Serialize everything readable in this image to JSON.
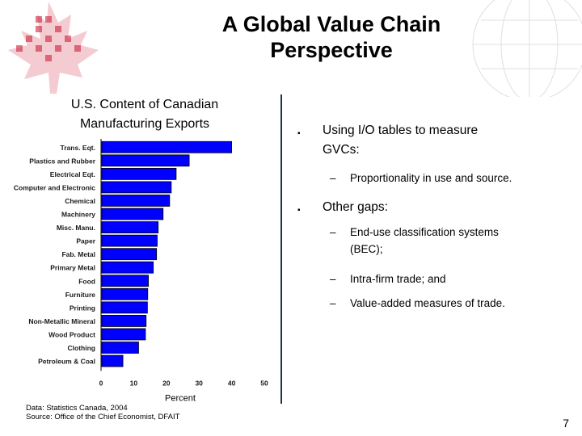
{
  "slide": {
    "title_lines": [
      "A Global Value Chain",
      "Perspective"
    ],
    "page_number": "7",
    "sources": [
      "Data: Statistics Canada, 2004",
      "Source: Office of the Chief Economist, DFAIT"
    ]
  },
  "bullets": [
    {
      "level": 1,
      "marker": "▪",
      "lines": [
        "Using I/O tables to measure",
        "GVCs:"
      ]
    },
    {
      "level": 2,
      "marker": "–",
      "lines": [
        "Proportionality in use and source."
      ]
    },
    {
      "level": 1,
      "marker": "▪",
      "lines": [
        "Other gaps:"
      ]
    },
    {
      "level": 2,
      "marker": "–",
      "lines": [
        "End-use classification systems",
        "(BEC);"
      ]
    },
    {
      "level": 2,
      "marker": "–",
      "lines": [
        "Intra-firm trade; and"
      ]
    },
    {
      "level": 2,
      "marker": "–",
      "lines": [
        "Value-added measures of trade."
      ]
    }
  ],
  "chart_data": {
    "type": "bar",
    "orientation": "horizontal",
    "title_lines": [
      "U.S. Content of Canadian",
      "Manufacturing Exports"
    ],
    "xlabel": "Percent",
    "ylabel": "",
    "xlim": [
      0,
      50
    ],
    "xticks": [
      0,
      10,
      20,
      30,
      40,
      50
    ],
    "grid": false,
    "bar_color": "#0000ff",
    "categories": [
      "Trans. Eqt.",
      "Plastics and Rubber",
      "Electrical Eqt.",
      "Computer and Electronic",
      "Chemical",
      "Machinery",
      "Misc. Manu.",
      "Paper",
      "Fab. Metal",
      "Primary Metal",
      "Food",
      "Furniture",
      "Printing",
      "Non-Metallic Mineral",
      "Wood Product",
      "Clothing",
      "Petroleum & Coal"
    ],
    "values": [
      40,
      27,
      23,
      21.5,
      21,
      19,
      17.5,
      17.2,
      17,
      16,
      14.5,
      14.3,
      14.2,
      13.8,
      13.6,
      11.5,
      6.7
    ]
  },
  "colors": {
    "title": "#000000",
    "divider": "#1f2f57",
    "decor_red": "#c8102e"
  }
}
